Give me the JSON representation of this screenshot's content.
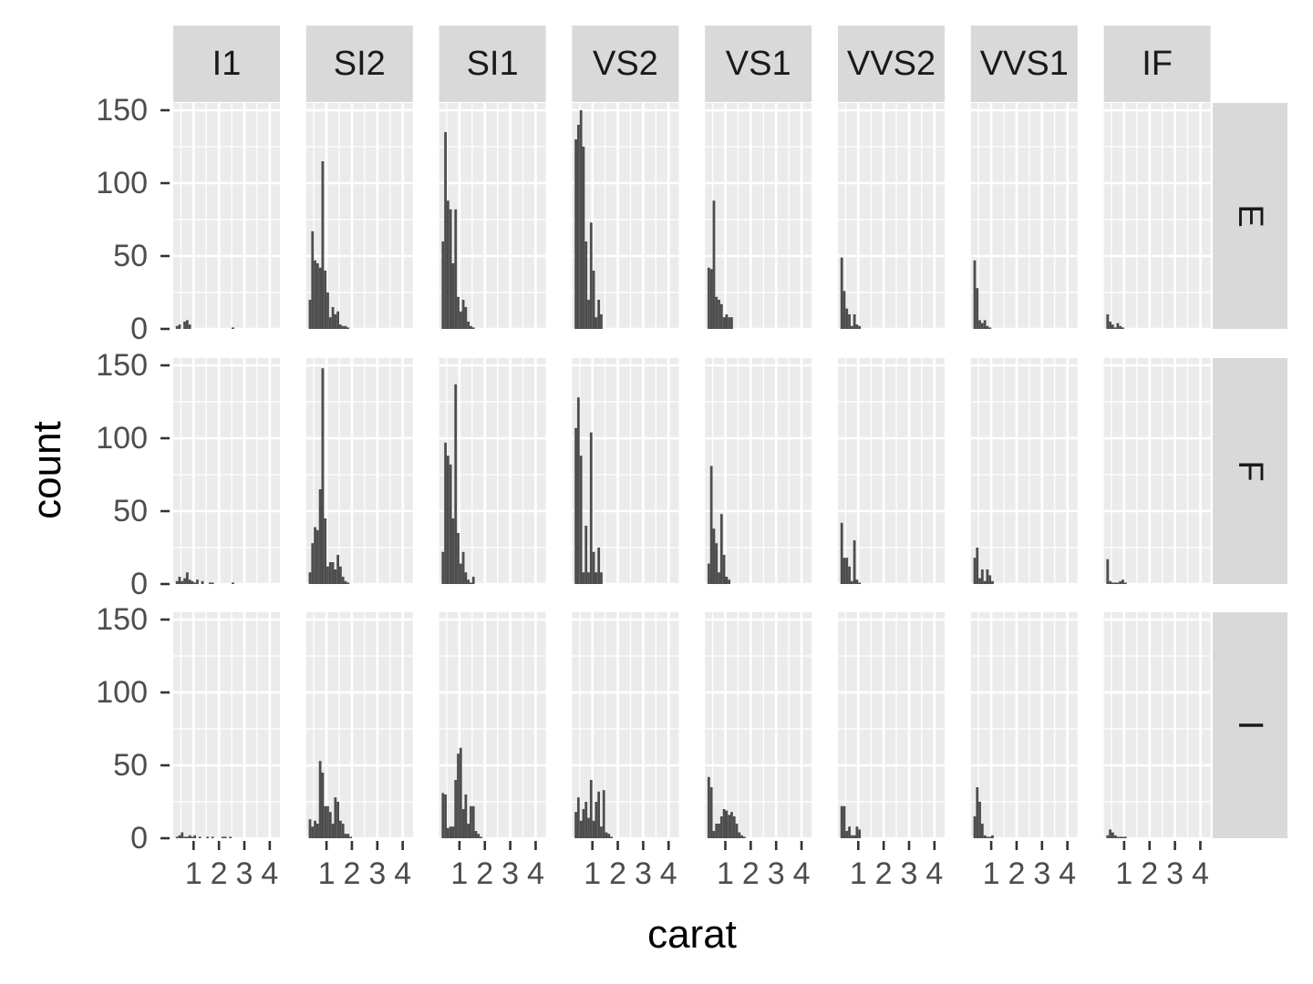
{
  "chart_data": {
    "type": "histogram",
    "facet_cols": [
      "I1",
      "SI2",
      "SI1",
      "VS2",
      "VS1",
      "VVS2",
      "VVS1",
      "IF"
    ],
    "facet_rows": [
      "E",
      "F",
      "I"
    ],
    "xlabel": "carat",
    "ylabel": "count",
    "xlim": [
      0.2,
      4.4
    ],
    "ylim": [
      0,
      155
    ],
    "x_ticks": [
      1,
      2,
      3,
      4
    ],
    "x_tick_labels": [
      "1",
      "2",
      "3",
      "4"
    ],
    "y_ticks": [
      0,
      50,
      100,
      150
    ],
    "y_tick_labels": [
      "0",
      "50",
      "100",
      "150"
    ],
    "bin_start": 0.3,
    "bin_width": 0.1,
    "grid": true,
    "bar_color": "#4d4d4d",
    "panel_bg": "#ebebeb",
    "strip_bg": "#d9d9d9",
    "counts": {
      "E": {
        "I1": [
          2,
          3,
          0,
          5,
          6,
          3,
          0,
          0,
          0,
          0,
          0,
          0,
          0,
          0,
          0,
          0,
          0,
          0,
          0,
          0,
          0,
          0,
          1,
          0,
          0,
          0
        ],
        "SI2": [
          20,
          67,
          47,
          45,
          42,
          115,
          40,
          25,
          8,
          15,
          10,
          12,
          3,
          2,
          2,
          1,
          0,
          0,
          0,
          0,
          0,
          0,
          0,
          0,
          0,
          0
        ],
        "SI1": [
          60,
          135,
          88,
          82,
          45,
          82,
          22,
          12,
          20,
          15,
          5,
          2,
          1,
          0,
          0,
          0,
          0,
          0,
          0,
          0,
          0,
          0,
          0,
          0,
          0,
          0
        ],
        "VS2": [
          130,
          140,
          150,
          125,
          60,
          20,
          73,
          40,
          8,
          20,
          10,
          0,
          0,
          0,
          0,
          0,
          0,
          0,
          0,
          0,
          0,
          0,
          0,
          0,
          0,
          0
        ],
        "VS1": [
          42,
          41,
          88,
          22,
          20,
          17,
          8,
          10,
          8,
          8,
          0,
          0,
          0,
          0,
          0,
          0,
          0,
          0,
          0,
          0,
          0,
          0,
          0,
          0,
          0,
          0
        ],
        "VVS2": [
          49,
          26,
          14,
          10,
          2,
          10,
          3,
          2,
          0,
          0,
          0,
          0,
          0,
          0,
          0,
          0,
          0,
          0,
          0,
          0,
          0,
          0,
          0,
          0,
          0,
          0
        ],
        "VVS1": [
          47,
          28,
          6,
          4,
          6,
          2,
          1,
          0,
          0,
          0,
          0,
          0,
          0,
          0,
          0,
          0,
          0,
          0,
          0,
          0,
          0,
          0,
          0,
          0,
          0,
          0
        ],
        "IF": [
          10,
          5,
          3,
          1,
          4,
          2,
          1,
          0,
          0,
          0,
          0,
          0,
          0,
          0,
          0,
          0,
          0,
          0,
          0,
          0,
          0,
          0,
          0,
          0,
          0,
          0
        ]
      },
      "F": {
        "I1": [
          2,
          5,
          2,
          4,
          8,
          3,
          2,
          1,
          3,
          0,
          2,
          0,
          0,
          1,
          1,
          0,
          0,
          0,
          0,
          0,
          0,
          0,
          1,
          0,
          0,
          0
        ],
        "SI2": [
          8,
          28,
          39,
          37,
          65,
          148,
          45,
          12,
          15,
          15,
          10,
          20,
          12,
          5,
          2,
          1,
          0,
          0,
          0,
          0,
          0,
          0,
          0,
          0,
          0,
          0
        ],
        "SI1": [
          22,
          97,
          88,
          82,
          45,
          137,
          35,
          14,
          22,
          8,
          3,
          1,
          5,
          0,
          0,
          0,
          0,
          0,
          0,
          0,
          0,
          0,
          0,
          0,
          0,
          0
        ],
        "VS2": [
          107,
          128,
          88,
          8,
          40,
          8,
          104,
          22,
          8,
          25,
          8,
          0,
          0,
          0,
          0,
          0,
          0,
          0,
          0,
          0,
          0,
          0,
          0,
          0,
          0,
          0
        ],
        "VS1": [
          14,
          81,
          38,
          28,
          8,
          48,
          20,
          5,
          3,
          0,
          0,
          0,
          0,
          0,
          0,
          0,
          0,
          0,
          0,
          0,
          0,
          0,
          0,
          0,
          0,
          0
        ],
        "VVS2": [
          42,
          18,
          18,
          12,
          2,
          30,
          3,
          1,
          0,
          0,
          0,
          0,
          0,
          0,
          0,
          0,
          0,
          0,
          0,
          0,
          0,
          0,
          0,
          0,
          0,
          0
        ],
        "VVS1": [
          18,
          25,
          4,
          10,
          2,
          10,
          6,
          2,
          0,
          0,
          0,
          0,
          0,
          0,
          0,
          0,
          0,
          0,
          0,
          0,
          0,
          0,
          0,
          0,
          0,
          0
        ],
        "IF": [
          17,
          2,
          1,
          1,
          1,
          2,
          3,
          1,
          0,
          0,
          0,
          0,
          0,
          0,
          0,
          0,
          0,
          0,
          0,
          0,
          0,
          0,
          0,
          0,
          0,
          0
        ]
      },
      "I": {
        "I1": [
          1,
          2,
          4,
          1,
          1,
          2,
          1,
          2,
          0,
          1,
          0,
          0,
          1,
          0,
          1,
          0,
          0,
          0,
          1,
          1,
          0,
          1,
          0,
          0,
          0,
          0
        ],
        "SI2": [
          13,
          8,
          12,
          10,
          53,
          45,
          22,
          22,
          18,
          10,
          28,
          25,
          12,
          10,
          3,
          3,
          1,
          0,
          0,
          0,
          0,
          0,
          0,
          0,
          0,
          0
        ],
        "SI1": [
          31,
          30,
          7,
          8,
          8,
          40,
          58,
          62,
          20,
          30,
          10,
          22,
          22,
          5,
          3,
          1,
          0,
          0,
          0,
          0,
          0,
          0,
          0,
          0,
          0,
          0
        ],
        "VS2": [
          18,
          28,
          12,
          20,
          25,
          14,
          40,
          12,
          25,
          32,
          8,
          33,
          4,
          3,
          1,
          0,
          0,
          0,
          0,
          0,
          0,
          0,
          0,
          0,
          0,
          0
        ],
        "VS1": [
          42,
          35,
          5,
          10,
          10,
          15,
          20,
          19,
          16,
          18,
          15,
          10,
          4,
          2,
          1,
          0,
          0,
          0,
          0,
          0,
          0,
          0,
          0,
          0,
          0,
          0
        ],
        "VVS2": [
          22,
          22,
          5,
          8,
          2,
          2,
          8,
          6,
          0,
          0,
          0,
          0,
          0,
          0,
          0,
          0,
          0,
          0,
          0,
          0,
          0,
          0,
          0,
          0,
          0,
          0
        ],
        "VVS1": [
          15,
          35,
          25,
          10,
          2,
          1,
          1,
          2,
          0,
          0,
          0,
          0,
          0,
          0,
          0,
          0,
          0,
          0,
          0,
          0,
          0,
          0,
          0,
          0,
          0,
          0
        ],
        "IF": [
          2,
          6,
          4,
          2,
          1,
          1,
          1,
          1,
          0,
          0,
          0,
          0,
          0,
          0,
          0,
          0,
          0,
          0,
          0,
          0,
          0,
          0,
          0,
          0,
          0,
          0
        ]
      }
    }
  }
}
